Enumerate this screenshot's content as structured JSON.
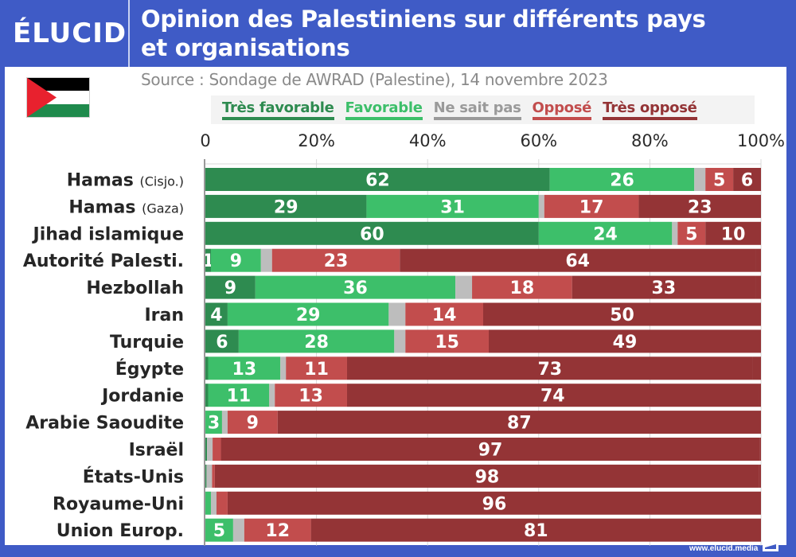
{
  "header": {
    "logo": "ÉLUCID",
    "title_line1": "Opinion des Palestiniens sur différents pays",
    "title_line2": "et organisations"
  },
  "source": "Source : Sondage de AWRAD (Palestine), 14 novembre 2023",
  "footer": {
    "url": "www.elucid.media"
  },
  "flag": {
    "name": "palestine-flag",
    "colors": {
      "black": "#000000",
      "white": "#ffffff",
      "green": "#1f8a4c",
      "red": "#e8212e"
    }
  },
  "chart_data": {
    "type": "bar",
    "orientation": "horizontal",
    "stacked": true,
    "title": "Opinion des Palestiniens sur différents pays et organisations",
    "subtitle": "Source : Sondage de AWRAD (Palestine), 14 novembre 2023",
    "xlabel": "",
    "ylabel": "",
    "xlim": [
      0,
      100
    ],
    "xticks": [
      0,
      20,
      40,
      60,
      80,
      100
    ],
    "xtick_labels": [
      "0",
      "20%",
      "40%",
      "60%",
      "80%",
      "100%"
    ],
    "grid": true,
    "legend_position": "top",
    "categories": [
      {
        "main": "Hamas",
        "sub": "(Cisjo.)"
      },
      {
        "main": "Hamas",
        "sub": "(Gaza)"
      },
      {
        "main": "Jihad islamique",
        "sub": ""
      },
      {
        "main": "Autorité Palesti.",
        "sub": ""
      },
      {
        "main": "Hezbollah",
        "sub": ""
      },
      {
        "main": "Iran",
        "sub": ""
      },
      {
        "main": "Turquie",
        "sub": ""
      },
      {
        "main": "Égypte",
        "sub": ""
      },
      {
        "main": "Jordanie",
        "sub": ""
      },
      {
        "main": "Arabie Saoudite",
        "sub": ""
      },
      {
        "main": "Israël",
        "sub": ""
      },
      {
        "main": "États-Unis",
        "sub": ""
      },
      {
        "main": "Royaume-Uni",
        "sub": ""
      },
      {
        "main": "Union Europ.",
        "sub": ""
      }
    ],
    "series": [
      {
        "name": "Très favorable",
        "color": "#2e8b50",
        "legend_color": "#2e8b50",
        "values": [
          62,
          29,
          60,
          1,
          9,
          4,
          6,
          0.5,
          0.5,
          0,
          0.3,
          0.2,
          0,
          0
        ],
        "labels": [
          "62",
          "29",
          "60",
          "1",
          "9",
          "4",
          "6",
          "",
          "",
          "",
          "",
          "",
          "",
          ""
        ]
      },
      {
        "name": "Favorable",
        "color": "#3dbf6a",
        "legend_color": "#3dbf6a",
        "values": [
          26,
          31,
          24,
          9,
          36,
          29,
          28,
          13,
          11,
          3,
          0,
          0,
          1,
          5
        ],
        "labels": [
          "26",
          "31",
          "24",
          "9",
          "36",
          "29",
          "28",
          "13",
          "11",
          "3",
          "",
          "",
          "",
          "5"
        ]
      },
      {
        "name": "Ne sait pas",
        "color": "#bdbdbd",
        "legend_color": "#9a9a9a",
        "values": [
          2,
          1,
          1,
          2,
          3,
          3,
          2,
          1,
          1,
          1,
          1,
          1,
          1,
          2
        ],
        "labels": [
          "",
          "",
          "",
          "",
          "",
          "",
          "",
          "",
          "",
          "",
          "",
          "",
          "",
          ""
        ]
      },
      {
        "name": "Opposé",
        "color": "#c24d4d",
        "legend_color": "#c24d4d",
        "values": [
          5,
          17,
          5,
          23,
          18,
          14,
          15,
          11,
          13,
          9,
          1.5,
          0.5,
          2,
          12
        ],
        "labels": [
          "5",
          "17",
          "5",
          "23",
          "18",
          "14",
          "15",
          "11",
          "13",
          "9",
          "",
          "",
          "",
          "12"
        ]
      },
      {
        "name": "Très opposé",
        "color": "#943436",
        "legend_color": "#943436",
        "values": [
          6,
          23,
          10,
          64,
          33,
          50,
          49,
          73,
          74,
          87,
          97,
          98,
          96,
          81
        ],
        "labels": [
          "6",
          "23",
          "10",
          "64",
          "33",
          "50",
          "49",
          "73",
          "74",
          "87",
          "97",
          "98",
          "96",
          "81"
        ]
      }
    ]
  }
}
